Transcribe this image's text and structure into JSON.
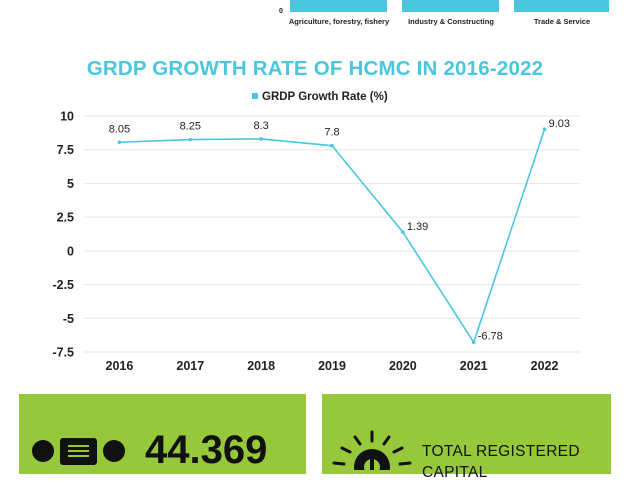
{
  "top_chart": {
    "zero_label": "0",
    "categories": [
      "Agriculture, forestry, fishery",
      "Industry & Constructing",
      "Trade & Service"
    ]
  },
  "chart_data": {
    "type": "line",
    "title": "GRDP GROWTH RATE OF HCMC IN 2016-2022",
    "legend": "GRDP Growth Rate (%)",
    "legend_position": "top-center",
    "x": [
      "2016",
      "2017",
      "2018",
      "2019",
      "2020",
      "2021",
      "2022"
    ],
    "series": [
      {
        "name": "GRDP Growth Rate (%)",
        "values": [
          8.05,
          8.25,
          8.3,
          7.8,
          1.39,
          -6.78,
          9.03
        ]
      }
    ],
    "data_labels": [
      "8.05",
      "8.25",
      "8.3",
      "7.8",
      "1.39",
      "-6.78",
      "9.03"
    ],
    "y_ticks": [
      "10",
      "7.5",
      "5",
      "2.5",
      "0",
      "-2.5",
      "-5",
      "-7.5"
    ],
    "y_tick_values": [
      10,
      7.5,
      5,
      2.5,
      0,
      -2.5,
      -5,
      -7.5
    ],
    "ylim": [
      -7.5,
      10
    ],
    "grid": true,
    "color": "#4bc6df"
  },
  "cards": {
    "left_value": "44.369",
    "right_label": "TOTAL REGISTERED CAPITAL"
  },
  "colors": {
    "accent": "#4bc6df",
    "card": "#97c83c"
  }
}
